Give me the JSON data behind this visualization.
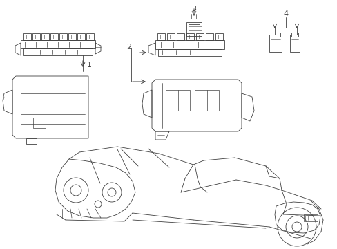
{
  "bg_color": "#ffffff",
  "line_color": "#404040",
  "fig_width": 4.89,
  "fig_height": 3.6,
  "dpi": 100,
  "parts": {
    "part1_label": "1",
    "part2_label": "2",
    "part3_label": "3",
    "part4_label": "4"
  }
}
